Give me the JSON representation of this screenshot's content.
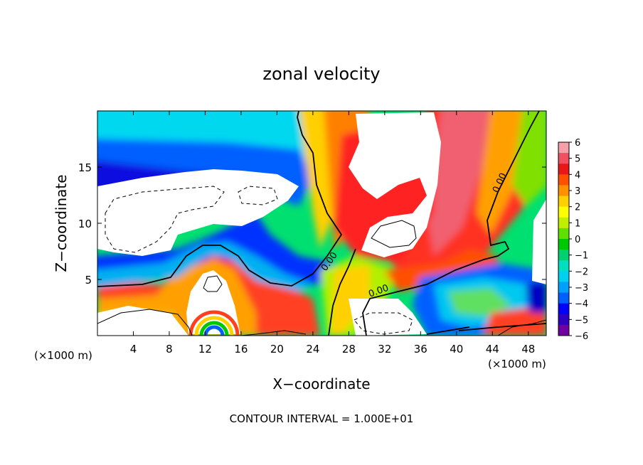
{
  "chart_data": {
    "type": "heatmap",
    "title": "zonal velocity",
    "xlabel": "X−coordinate",
    "ylabel": "Z−coordinate",
    "x_unit_left": "(×1000 m)",
    "x_unit_right": "(×1000 m)",
    "footer": "CONTOUR INTERVAL = 1.000E+01",
    "xlim": [
      0,
      50
    ],
    "ylim": [
      0,
      20
    ],
    "x_ticks": [
      4,
      8,
      12,
      16,
      20,
      24,
      28,
      32,
      36,
      40,
      44,
      48
    ],
    "y_ticks": [
      5,
      10,
      15
    ],
    "colorbar": {
      "ticks": [
        6,
        5,
        4,
        3,
        2,
        1,
        0,
        -1,
        -2,
        -3,
        -4,
        -5,
        -6
      ],
      "range": [
        -6,
        6
      ],
      "colors": [
        "#f4a0a8",
        "#f05060",
        "#e81818",
        "#ff5000",
        "#ff9000",
        "#ffd000",
        "#ffff00",
        "#c0f000",
        "#60e000",
        "#00c800",
        "#00d070",
        "#00e0c0",
        "#00d0f0",
        "#00a0ff",
        "#0060ff",
        "#0000ff",
        "#3000c0",
        "#7000a0"
      ]
    },
    "contour_labels": [
      "0.00",
      "0.00",
      "0.00"
    ]
  }
}
